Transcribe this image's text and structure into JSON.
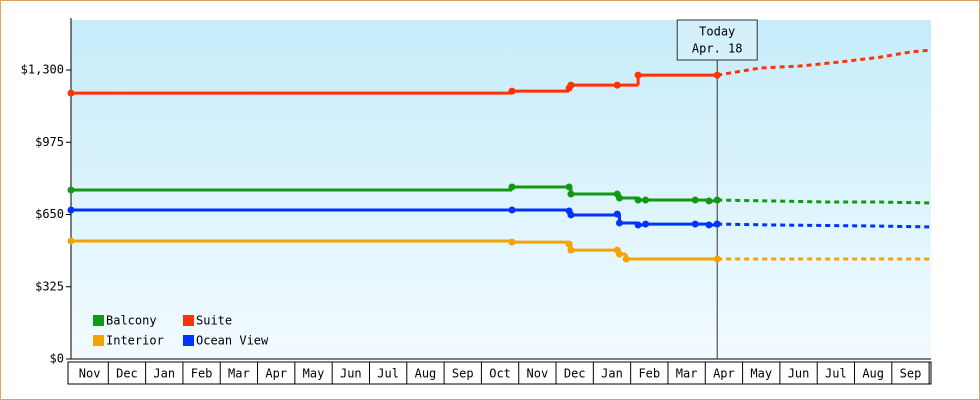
{
  "chart_data": {
    "type": "line",
    "step": true,
    "xlim": [
      0,
      23.05
    ],
    "ylim": [
      0,
      1525
    ],
    "yticks": [
      {
        "value": 0,
        "label": "$0"
      },
      {
        "value": 325,
        "label": "$325"
      },
      {
        "value": 650,
        "label": "$650"
      },
      {
        "value": 975,
        "label": "$975"
      },
      {
        "value": 1300,
        "label": "$1,300"
      }
    ],
    "xticks": [
      {
        "value": 0.5,
        "label": "Nov"
      },
      {
        "value": 1.5,
        "label": "Dec"
      },
      {
        "value": 2.5,
        "label": "Jan"
      },
      {
        "value": 3.5,
        "label": "Feb"
      },
      {
        "value": 4.5,
        "label": "Mar"
      },
      {
        "value": 5.5,
        "label": "Apr"
      },
      {
        "value": 6.5,
        "label": "May"
      },
      {
        "value": 7.5,
        "label": "Jun"
      },
      {
        "value": 8.5,
        "label": "Jul"
      },
      {
        "value": 9.5,
        "label": "Aug"
      },
      {
        "value": 10.5,
        "label": "Sep"
      },
      {
        "value": 11.5,
        "label": "Oct"
      },
      {
        "value": 12.5,
        "label": "Nov"
      },
      {
        "value": 13.5,
        "label": "Dec"
      },
      {
        "value": 14.5,
        "label": "Jan"
      },
      {
        "value": 15.5,
        "label": "Feb"
      },
      {
        "value": 16.5,
        "label": "Mar"
      },
      {
        "value": 17.5,
        "label": "Apr"
      },
      {
        "value": 18.5,
        "label": "May"
      },
      {
        "value": 19.5,
        "label": "Jun"
      },
      {
        "value": 20.5,
        "label": "Jul"
      },
      {
        "value": 21.5,
        "label": "Aug"
      },
      {
        "value": 22.5,
        "label": "Sep"
      }
    ],
    "annotation": {
      "x": 17.32,
      "lines": [
        "Today",
        "Apr. 18"
      ]
    },
    "series": [
      {
        "name": "Balcony",
        "color": "#119911",
        "x": [
          0,
          11.82,
          13.35,
          13.4,
          14.64,
          14.7,
          15.2,
          15.4,
          16.73,
          17.1,
          17.32
        ],
        "values": [
          760,
          774,
          774,
          742,
          742,
          724,
          715,
          715,
          715,
          711,
          715
        ],
        "forecast_x": [
          17.32,
          18.74,
          20.35,
          21.69,
          23.05
        ],
        "forecast_values": [
          715,
          711,
          706,
          706,
          702
        ]
      },
      {
        "name": "Suite",
        "color": "#ff3300",
        "x": [
          0,
          11.82,
          13.35,
          13.4,
          14.64,
          15.2,
          17.32
        ],
        "values": [
          1196,
          1205,
          1219,
          1232,
          1232,
          1277,
          1277
        ],
        "forecast_x": [
          17.32,
          18.47,
          19.54,
          20.6,
          21.69,
          22.49,
          23.05
        ],
        "forecast_values": [
          1277,
          1309,
          1318,
          1336,
          1358,
          1381,
          1390
        ]
      },
      {
        "name": "Interior",
        "color": "#f5a300",
        "x": [
          0,
          11.82,
          13.35,
          13.4,
          14.64,
          14.7,
          14.88,
          17.32
        ],
        "values": [
          531,
          526,
          517,
          490,
          490,
          472,
          450,
          450
        ],
        "forecast_x": [
          17.32,
          23.05
        ],
        "forecast_values": [
          450,
          450
        ]
      },
      {
        "name": "Ocean View",
        "color": "#0033ff",
        "x": [
          0,
          11.82,
          13.35,
          13.4,
          14.64,
          14.7,
          15.2,
          15.4,
          16.73,
          17.1,
          17.32
        ],
        "values": [
          670,
          670,
          666,
          648,
          652,
          612,
          603,
          607,
          607,
          603,
          607
        ],
        "forecast_x": [
          17.32,
          18.74,
          21.69,
          23.05
        ],
        "forecast_values": [
          607,
          603,
          598,
          594
        ]
      }
    ]
  }
}
